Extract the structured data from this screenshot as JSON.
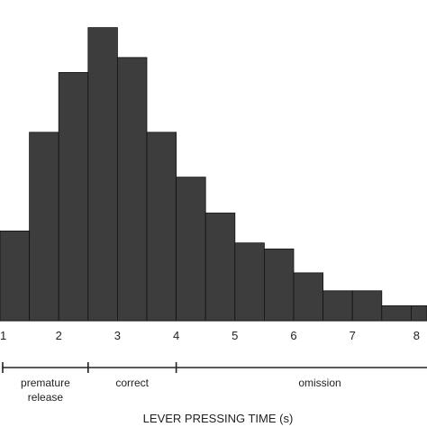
{
  "chart_data": {
    "type": "bar",
    "title": "",
    "xlabel": "LEVER PRESSING TIME (s)",
    "ylabel": "",
    "bin_width": 0.5,
    "bin_starts": [
      1.0,
      1.5,
      2.0,
      2.5,
      3.0,
      3.5,
      4.0,
      4.5,
      5.0,
      5.5,
      6.0,
      6.5,
      7.0,
      7.5,
      8.0
    ],
    "values": [
      30,
      63,
      83,
      98,
      88,
      63,
      48,
      36,
      26,
      24,
      16,
      10,
      10,
      5,
      5
    ],
    "ylim": [
      0,
      100
    ],
    "x_ticks": [
      "1",
      "2",
      "3",
      "4",
      "5",
      "6",
      "7",
      "8"
    ],
    "x_tick_values": [
      1,
      2,
      3,
      4,
      5,
      6,
      7,
      8
    ],
    "bar_color": "#3d3d3d",
    "grid": false,
    "legend": "none",
    "response_periods": [
      {
        "line1": "premature",
        "line2": "release",
        "start": 1.0,
        "end": 2.5
      },
      {
        "line1": "correct",
        "line2": "",
        "start": 2.5,
        "end": 4.0
      },
      {
        "line1": "omission",
        "line2": "",
        "start": 4.0,
        "end": 8.5
      }
    ]
  }
}
